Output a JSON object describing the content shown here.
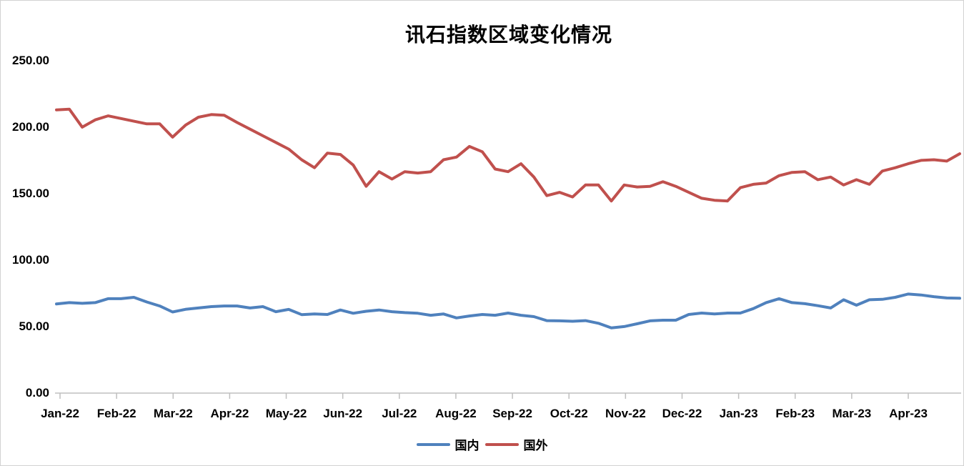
{
  "chart_data": {
    "type": "line",
    "title": "讯石指数区域变化情况",
    "cadence": "weekly",
    "x_tick_labels": [
      "Jan-22",
      "Feb-22",
      "Mar-22",
      "Apr-22",
      "May-22",
      "Jun-22",
      "Jul-22",
      "Aug-22",
      "Sep-22",
      "Oct-22",
      "Nov-22",
      "Dec-22",
      "Jan-23",
      "Feb-23",
      "Mar-23",
      "Apr-23"
    ],
    "y_tick_labels": [
      "0.00",
      "50.00",
      "100.00",
      "150.00",
      "200.00",
      "250.00"
    ],
    "ylim": [
      0,
      250
    ],
    "ytick_step": 50,
    "grid": false,
    "legend_position": "bottom",
    "series": [
      {
        "name": "国内",
        "key": "domestic",
        "color": "#4F81BD",
        "values": [
          66.5,
          67.5,
          67,
          67.5,
          70.5,
          70.5,
          71.5,
          68,
          65,
          60.5,
          62.5,
          63.5,
          64.5,
          65,
          65,
          63.5,
          64.5,
          60.7,
          62.4,
          58.5,
          59,
          58.6,
          62,
          59.5,
          61,
          62,
          60.7,
          60,
          59.5,
          58,
          59,
          56,
          57.5,
          58.6,
          58,
          59.7,
          58,
          57,
          54,
          53.8,
          53.5,
          54,
          52,
          48.5,
          49.5,
          51.6,
          53.8,
          54.3,
          54.3,
          58.6,
          59.7,
          59,
          59.7,
          59.7,
          63,
          67.5,
          70.5,
          67.5,
          66.7,
          65.2,
          63.5,
          69.7,
          65.6,
          69.7,
          70,
          71.5,
          74,
          73.3,
          72,
          71,
          70.8
        ]
      },
      {
        "name": "国外",
        "key": "foreign",
        "color": "#C0504D",
        "values": [
          212.5,
          213,
          199.5,
          205,
          208,
          206,
          204,
          202,
          202,
          192,
          201,
          207,
          209,
          208.5,
          203,
          198,
          193,
          188,
          183,
          175,
          169,
          180,
          179,
          171,
          155,
          166,
          160.5,
          166,
          165,
          166,
          175,
          177,
          185,
          181,
          168,
          166,
          172,
          162,
          148,
          150.5,
          147,
          156,
          156,
          144,
          156,
          154.5,
          155,
          158.5,
          155,
          150.5,
          146,
          144.5,
          144,
          154,
          156.5,
          157.5,
          163,
          165.5,
          166,
          160,
          162,
          156,
          160,
          156.5,
          166.5,
          169,
          172,
          174.5,
          175,
          174,
          179.5
        ]
      }
    ]
  },
  "colors": {
    "axis_line": "#BFBFBF",
    "tick_mark": "#BFBFBF",
    "text": "#000000",
    "frame_border": "#D2D2D2",
    "background": "#FFFFFF"
  }
}
